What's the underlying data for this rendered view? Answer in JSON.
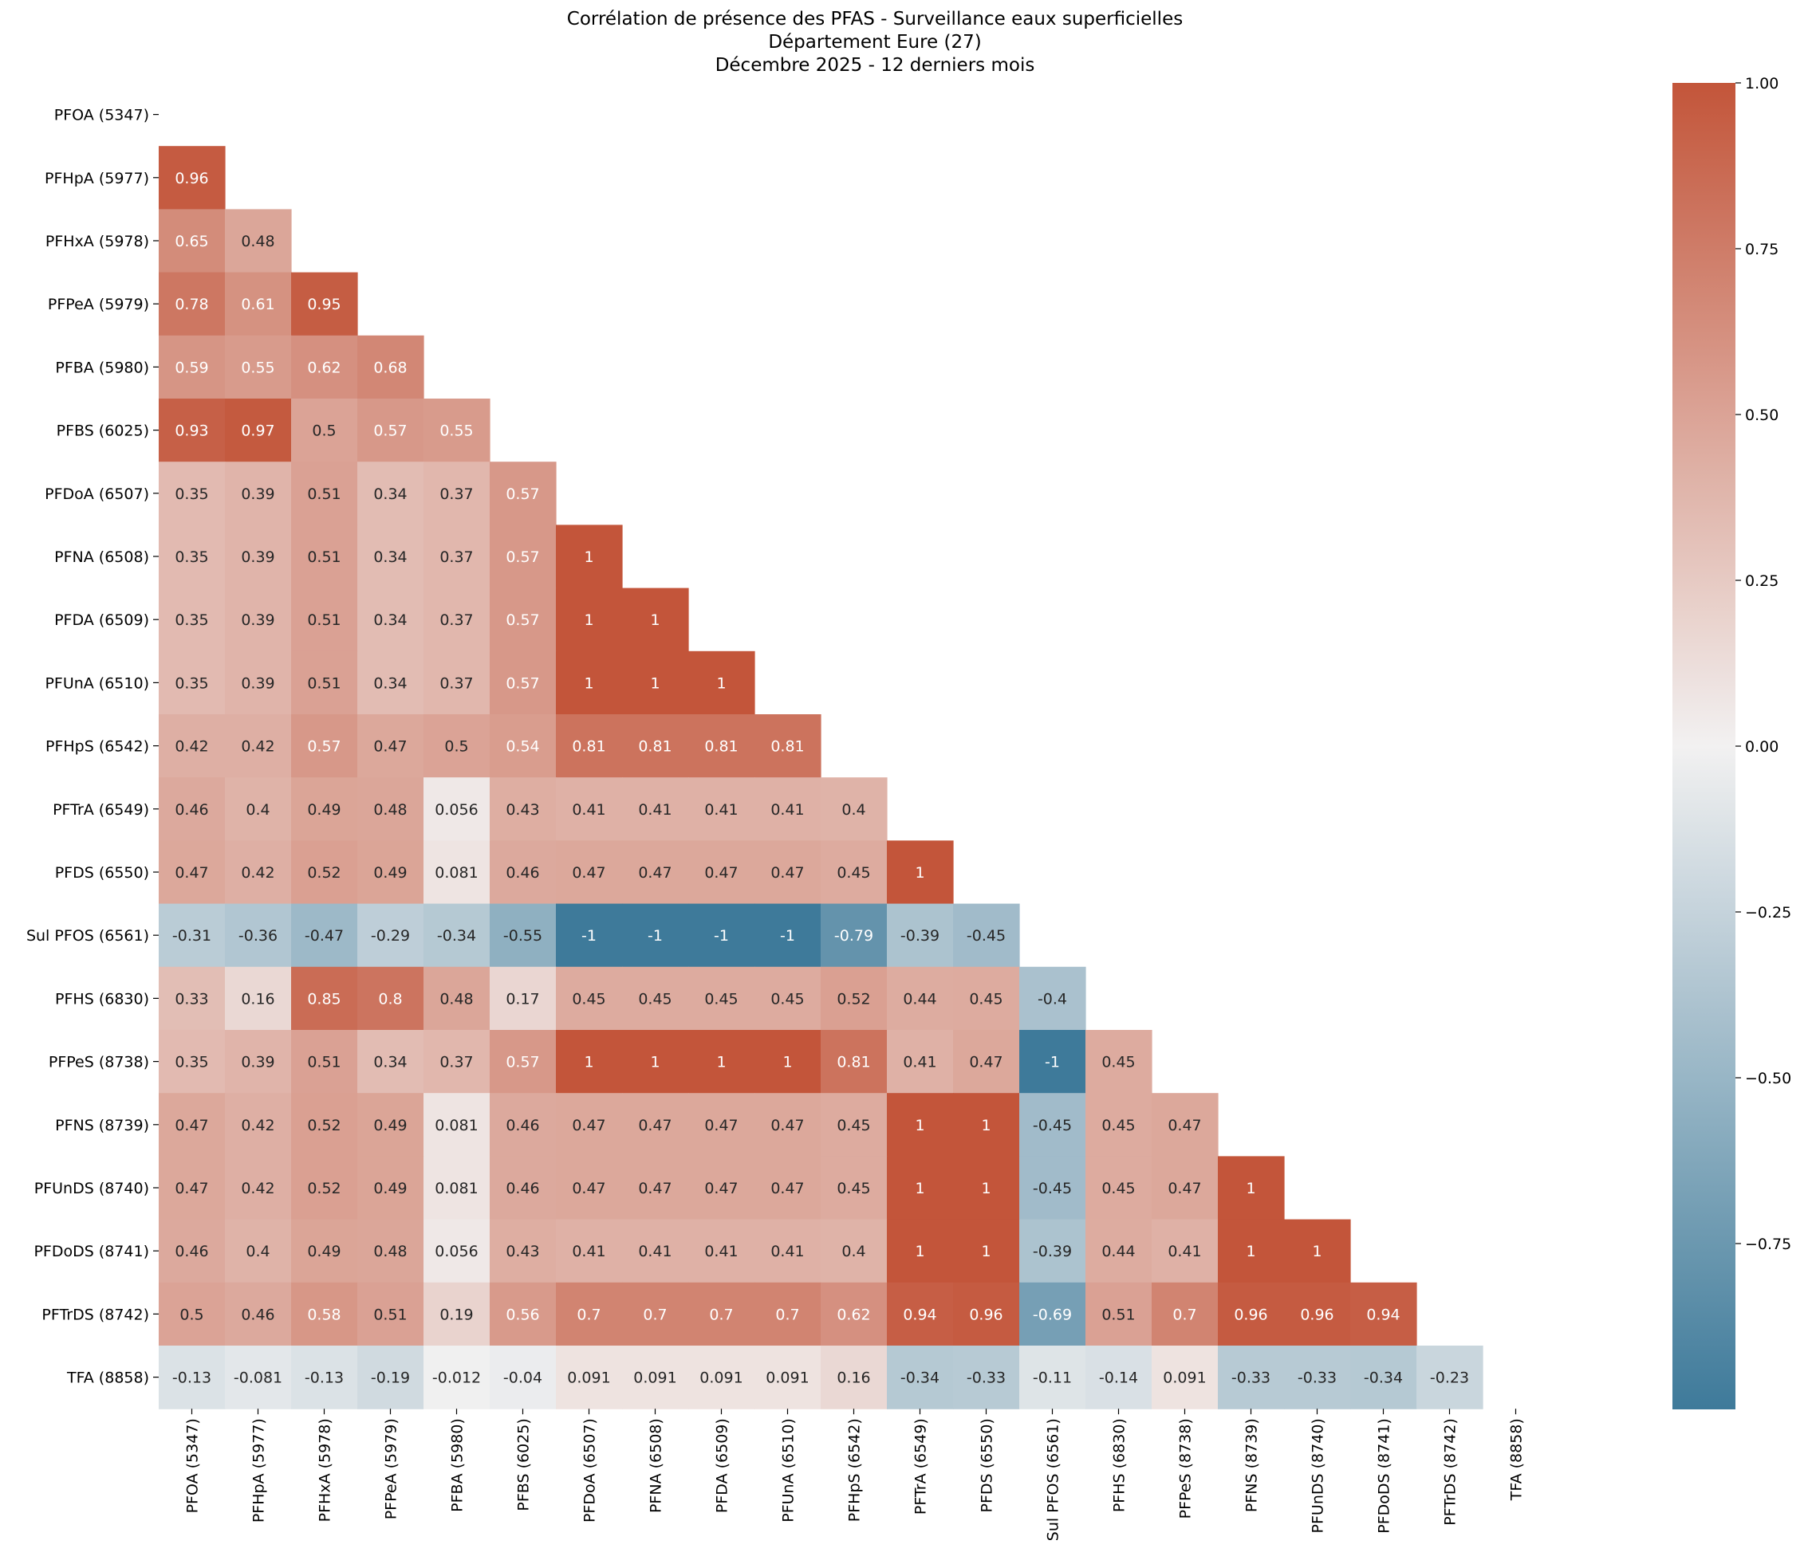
{
  "chart_data": {
    "type": "heatmap",
    "title": [
      "Corrélation de présence des PFAS - Surveillance eaux superficielles",
      "Département Eure (27)",
      "Décembre 2025 - 12 derniers mois"
    ],
    "labels": [
      "PFOA (5347)",
      "PFHpA (5977)",
      "PFHxA (5978)",
      "PFPeA (5979)",
      "PFBA (5980)",
      "PFBS (6025)",
      "PFDoA (6507)",
      "PFNA (6508)",
      "PFDA (6509)",
      "PFUnA (6510)",
      "PFHpS (6542)",
      "PFTrA (6549)",
      "PFDS (6550)",
      "Sul PFOS (6561)",
      "PFHS (6830)",
      "PFPeS (8738)",
      "PFNS (8739)",
      "PFUnDS (8740)",
      "PFDoDS (8741)",
      "PFTrDS (8742)",
      "TFA (8858)"
    ],
    "mask": "upper-triangle-including-diagonal",
    "lower_triangle": [
      [],
      [
        0.96
      ],
      [
        0.65,
        0.48
      ],
      [
        0.78,
        0.61,
        0.95
      ],
      [
        0.59,
        0.55,
        0.62,
        0.68
      ],
      [
        0.93,
        0.97,
        0.5,
        0.57,
        0.55
      ],
      [
        0.35,
        0.39,
        0.51,
        0.34,
        0.37,
        0.57
      ],
      [
        0.35,
        0.39,
        0.51,
        0.34,
        0.37,
        0.57,
        1
      ],
      [
        0.35,
        0.39,
        0.51,
        0.34,
        0.37,
        0.57,
        1,
        1
      ],
      [
        0.35,
        0.39,
        0.51,
        0.34,
        0.37,
        0.57,
        1,
        1,
        1
      ],
      [
        0.42,
        0.42,
        0.57,
        0.47,
        0.5,
        0.54,
        0.81,
        0.81,
        0.81,
        0.81
      ],
      [
        0.46,
        0.4,
        0.49,
        0.48,
        0.056,
        0.43,
        0.41,
        0.41,
        0.41,
        0.41,
        0.4
      ],
      [
        0.47,
        0.42,
        0.52,
        0.49,
        0.081,
        0.46,
        0.47,
        0.47,
        0.47,
        0.47,
        0.45,
        1
      ],
      [
        -0.31,
        -0.36,
        -0.47,
        -0.29,
        -0.34,
        -0.55,
        -1,
        -1,
        -1,
        -1,
        -0.79,
        -0.39,
        -0.45
      ],
      [
        0.33,
        0.16,
        0.85,
        0.8,
        0.48,
        0.17,
        0.45,
        0.45,
        0.45,
        0.45,
        0.52,
        0.44,
        0.45,
        -0.4
      ],
      [
        0.35,
        0.39,
        0.51,
        0.34,
        0.37,
        0.57,
        1,
        1,
        1,
        1,
        0.81,
        0.41,
        0.47,
        -1,
        0.45
      ],
      [
        0.47,
        0.42,
        0.52,
        0.49,
        0.081,
        0.46,
        0.47,
        0.47,
        0.47,
        0.47,
        0.45,
        1,
        1,
        -0.45,
        0.45,
        0.47
      ],
      [
        0.47,
        0.42,
        0.52,
        0.49,
        0.081,
        0.46,
        0.47,
        0.47,
        0.47,
        0.47,
        0.45,
        1,
        1,
        -0.45,
        0.45,
        0.47,
        1
      ],
      [
        0.46,
        0.4,
        0.49,
        0.48,
        0.056,
        0.43,
        0.41,
        0.41,
        0.41,
        0.41,
        0.4,
        1,
        1,
        -0.39,
        0.44,
        0.41,
        1,
        1
      ],
      [
        0.5,
        0.46,
        0.58,
        0.51,
        0.19,
        0.56,
        0.7,
        0.7,
        0.7,
        0.7,
        0.62,
        0.94,
        0.96,
        -0.69,
        0.51,
        0.7,
        0.96,
        0.96,
        0.94
      ],
      [
        -0.13,
        -0.081,
        -0.13,
        -0.19,
        -0.012,
        -0.04,
        0.091,
        0.091,
        0.091,
        0.091,
        0.16,
        -0.34,
        -0.33,
        -0.11,
        -0.14,
        0.091,
        -0.33,
        -0.33,
        -0.34,
        -0.23
      ]
    ],
    "colorbar": {
      "range": [
        -1,
        1
      ],
      "ticks": [
        1,
        0.75,
        0.5,
        0.25,
        0,
        -0.25,
        -0.5,
        -0.75
      ],
      "tick_labels": [
        "1.00",
        "0.75",
        "0.50",
        "0.25",
        "0.00",
        "−0.25",
        "−0.50",
        "−0.75"
      ],
      "colors": {
        "low": "#3e7a9a",
        "mid": "#f2f1f1",
        "high": "#c3553a"
      }
    },
    "annotations": true
  }
}
